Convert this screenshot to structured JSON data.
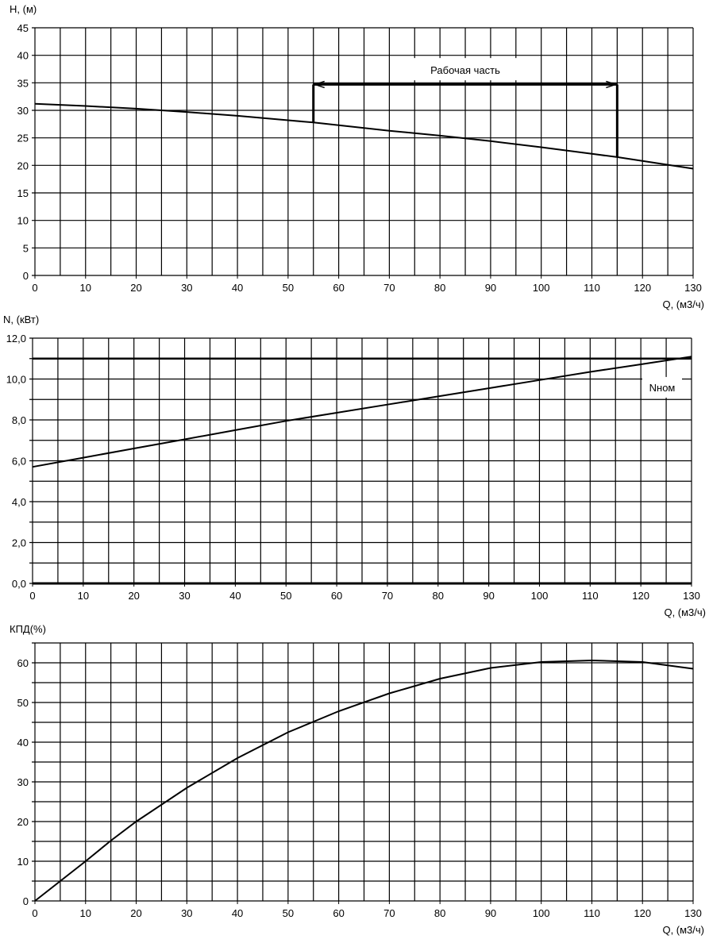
{
  "chart_data": [
    {
      "type": "line",
      "ylabel": "H, (м)",
      "xlabel": "Q, (м3/ч)",
      "xlim": [
        0,
        130
      ],
      "ylim": [
        0,
        45
      ],
      "x_ticks": [
        0,
        10,
        20,
        30,
        40,
        50,
        60,
        70,
        80,
        90,
        100,
        110,
        120,
        130
      ],
      "y_ticks": [
        "0",
        "5",
        "10",
        "15",
        "20",
        "25",
        "30",
        "35",
        "40",
        "45"
      ],
      "grid": true,
      "series": [
        {
          "x": [
            0,
            10,
            20,
            30,
            40,
            50,
            55,
            60,
            70,
            80,
            90,
            100,
            110,
            115,
            120,
            130
          ],
          "y": [
            31.2,
            30.8,
            30.3,
            29.7,
            29.0,
            28.2,
            27.8,
            27.3,
            26.3,
            25.4,
            24.4,
            23.3,
            22.1,
            21.5,
            20.8,
            19.4
          ]
        }
      ],
      "annotation": {
        "label": "Рабочая часть",
        "x_from": 55,
        "x_to": 115,
        "y": 34.7
      }
    },
    {
      "type": "line",
      "ylabel": "N, (кВт)",
      "xlabel": "Q, (м3/ч)",
      "xlim": [
        0,
        130
      ],
      "ylim": [
        0,
        12
      ],
      "x_ticks": [
        0,
        10,
        20,
        30,
        40,
        50,
        60,
        70,
        80,
        90,
        100,
        110,
        120,
        130
      ],
      "y_ticks": [
        "0,0",
        "2,0",
        "4,0",
        "6,0",
        "8,0",
        "10,0",
        "12,0"
      ],
      "grid": true,
      "series": [
        {
          "x": [
            0,
            10,
            20,
            30,
            40,
            50,
            60,
            70,
            80,
            90,
            100,
            110,
            120,
            130
          ],
          "y": [
            5.7,
            6.15,
            6.6,
            7.05,
            7.5,
            7.95,
            8.35,
            8.75,
            9.15,
            9.55,
            9.95,
            10.35,
            10.72,
            11.1
          ]
        }
      ],
      "reference_line": {
        "label": "Nном",
        "y": 11.0
      }
    },
    {
      "type": "line",
      "ylabel": "КПД(%)",
      "xlabel": "Q, (м3/ч)",
      "xlim": [
        0,
        130
      ],
      "ylim": [
        0,
        65
      ],
      "x_ticks": [
        0,
        10,
        20,
        30,
        40,
        50,
        60,
        70,
        80,
        90,
        100,
        110,
        120,
        130
      ],
      "y_ticks": [
        "0",
        "10",
        "20",
        "30",
        "40",
        "50",
        "60"
      ],
      "grid": true,
      "series": [
        {
          "x": [
            0,
            5,
            10,
            15,
            20,
            30,
            40,
            50,
            60,
            70,
            80,
            90,
            100,
            110,
            120,
            130
          ],
          "y": [
            0,
            5,
            10,
            15.2,
            20,
            28.5,
            36,
            42.5,
            47.8,
            52.3,
            56,
            58.7,
            60.2,
            60.6,
            60.2,
            58.5
          ]
        }
      ]
    }
  ]
}
